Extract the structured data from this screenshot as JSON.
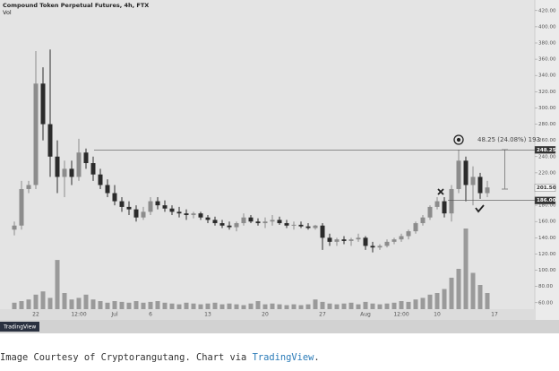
{
  "chart_data": {
    "type": "candlestick",
    "title": "Compound Token Perpetual Futures, 4h, FTX",
    "volume_label": "Vol",
    "categories": [
      null,
      null,
      null,
      "22",
      null,
      null,
      null,
      null,
      null,
      "12:00",
      null,
      null,
      null,
      null,
      "Jul",
      null,
      null,
      null,
      null,
      "6",
      null,
      null,
      null,
      null,
      null,
      null,
      null,
      "13",
      null,
      null,
      null,
      null,
      null,
      null,
      null,
      "20",
      null,
      null,
      null,
      null,
      null,
      null,
      null,
      "27",
      null,
      null,
      null,
      null,
      null,
      "Aug",
      null,
      null,
      null,
      null,
      "12:00",
      null,
      null,
      null,
      null,
      "10",
      null,
      null,
      null,
      null,
      null,
      null,
      null,
      "17"
    ],
    "open": [
      150,
      155,
      200,
      205,
      330,
      280,
      240,
      215,
      225,
      215,
      245,
      232,
      218,
      205,
      195,
      185,
      178,
      175,
      165,
      172,
      185,
      180,
      176,
      172,
      170,
      168,
      170,
      165,
      162,
      158,
      155,
      153,
      158,
      165,
      160,
      158,
      160,
      162,
      158,
      155,
      156,
      154,
      152,
      155,
      140,
      135,
      138,
      136,
      138,
      140,
      130,
      128,
      130,
      135,
      138,
      142,
      148,
      158,
      165,
      178,
      185,
      170,
      200,
      235,
      205,
      215,
      195,
      null
    ],
    "high": [
      160,
      210,
      210,
      370,
      350,
      372,
      260,
      235,
      235,
      262,
      250,
      240,
      225,
      212,
      205,
      190,
      185,
      180,
      178,
      190,
      190,
      186,
      180,
      178,
      175,
      172,
      172,
      168,
      166,
      162,
      160,
      160,
      170,
      168,
      164,
      165,
      168,
      166,
      162,
      160,
      160,
      158,
      156,
      158,
      145,
      140,
      142,
      140,
      145,
      142,
      135,
      132,
      138,
      140,
      145,
      150,
      160,
      168,
      180,
      190,
      190,
      205,
      248,
      240,
      228,
      220,
      210,
      null
    ],
    "low": [
      143,
      150,
      195,
      200,
      260,
      215,
      195,
      190,
      205,
      210,
      225,
      210,
      200,
      190,
      180,
      172,
      168,
      160,
      162,
      168,
      175,
      172,
      168,
      165,
      162,
      164,
      162,
      158,
      155,
      152,
      150,
      148,
      155,
      158,
      155,
      152,
      155,
      156,
      152,
      150,
      152,
      150,
      150,
      125,
      130,
      130,
      132,
      130,
      135,
      125,
      122,
      125,
      128,
      132,
      135,
      138,
      145,
      155,
      162,
      175,
      165,
      160,
      195,
      185,
      180,
      188,
      190,
      null
    ],
    "close": [
      155,
      200,
      205,
      330,
      280,
      240,
      215,
      225,
      215,
      245,
      232,
      218,
      205,
      195,
      185,
      178,
      175,
      165,
      172,
      185,
      180,
      176,
      172,
      170,
      168,
      170,
      165,
      162,
      158,
      155,
      153,
      158,
      165,
      160,
      158,
      160,
      162,
      158,
      155,
      156,
      154,
      152,
      155,
      140,
      135,
      138,
      136,
      138,
      140,
      130,
      128,
      130,
      135,
      138,
      142,
      148,
      158,
      165,
      178,
      185,
      170,
      200,
      235,
      205,
      215,
      195,
      202,
      null
    ],
    "up_color": "#8c8c8c",
    "down_color": "#2b2b2b",
    "volume": [
      8,
      10,
      12,
      18,
      22,
      14,
      61,
      20,
      12,
      14,
      18,
      12,
      10,
      8,
      10,
      9,
      8,
      10,
      8,
      9,
      10,
      8,
      7,
      6,
      8,
      7,
      6,
      7,
      8,
      6,
      7,
      6,
      5,
      7,
      10,
      6,
      7,
      6,
      5,
      6,
      5,
      6,
      12,
      9,
      7,
      6,
      7,
      8,
      6,
      9,
      7,
      6,
      7,
      8,
      10,
      9,
      12,
      14,
      18,
      20,
      25,
      39,
      50,
      100,
      45,
      30,
      20,
      null
    ],
    "volume_color": "#9a9a9a",
    "volume_ylim": [
      0,
      100
    ],
    "ylim": [
      52,
      433
    ],
    "yticks": [
      {
        "value": 60,
        "label": "60.00"
      },
      {
        "value": 80,
        "label": "80.00"
      },
      {
        "value": 100,
        "label": "100.00"
      },
      {
        "value": 120,
        "label": "120.00"
      },
      {
        "value": 140,
        "label": "140.00"
      },
      {
        "value": 160,
        "label": "160.00"
      },
      {
        "value": 180,
        "label": "180.00"
      },
      {
        "value": 200,
        "label": "200.00"
      },
      {
        "value": 220,
        "label": "220.00"
      },
      {
        "value": 240,
        "label": "240.00"
      },
      {
        "value": 260,
        "label": "260.00"
      },
      {
        "value": 280,
        "label": "280.00"
      },
      {
        "value": 300,
        "label": "300.00"
      },
      {
        "value": 320,
        "label": "320.00"
      },
      {
        "value": 340,
        "label": "340.00"
      },
      {
        "value": 360,
        "label": "360.00"
      },
      {
        "value": 380,
        "label": "380.00"
      },
      {
        "value": 400,
        "label": "400.00"
      },
      {
        "value": 420,
        "label": "420.00"
      }
    ],
    "price_labels": [
      248.25,
      {
        "value": 201.5,
        "label": "201.50"
      },
      {
        "value": 186,
        "label": "186.00"
      }
    ],
    "measure_label": "48.25 (24.08%) 193"
  },
  "logo": "TradingView",
  "caption": {
    "text": "Image Courtesy of Cryptorangutang. Chart via",
    "link": "TradingView",
    "end": "."
  }
}
